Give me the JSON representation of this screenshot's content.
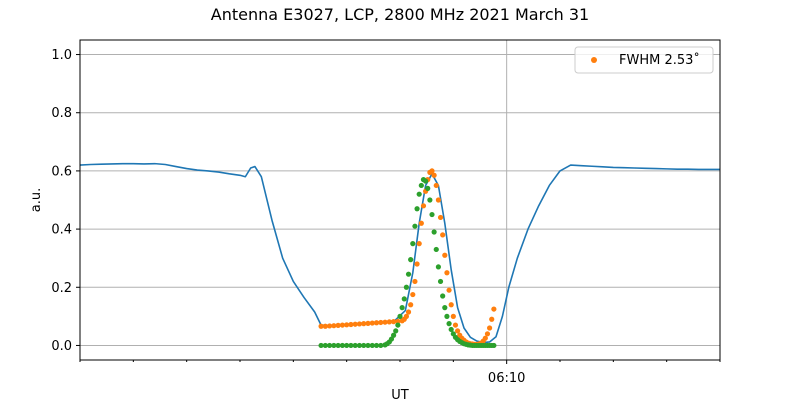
{
  "chart_data": {
    "type": "scatter",
    "title": "Antenna E3027, LCP, 2800 MHz 2021 March 31",
    "xlabel": "UT",
    "ylabel": "a.u.",
    "ylim": [
      -0.05,
      1.05
    ],
    "xlim": [
      0,
      60
    ],
    "x_units": "minutes, relative",
    "yticks": [
      0.0,
      0.2,
      0.4,
      0.6,
      0.8,
      1.0
    ],
    "ytick_labels": [
      "0.0",
      "0.2",
      "0.4",
      "0.6",
      "0.8",
      "1.0"
    ],
    "xticks_major": [
      {
        "x": 40,
        "label": "06:10"
      }
    ],
    "xticks_minor": [
      0,
      5,
      10,
      15,
      20,
      25,
      30,
      35,
      45,
      50,
      55,
      60
    ],
    "grid": true,
    "legend_position": "top-right",
    "legend": [
      {
        "label": "FWHM 2.53$^\\circ$",
        "display": "FWHM 2.53˚",
        "color": "#ff7f0e",
        "marker": "point"
      }
    ],
    "colors": {
      "measured": "#1f77b4",
      "fit": "#ff7f0e",
      "model": "#2ca02c"
    },
    "series": [
      {
        "style": "line",
        "color": "#1f77b4",
        "x": [
          0,
          1,
          2,
          3,
          4,
          5,
          6,
          7,
          8,
          9,
          10,
          11,
          12,
          13,
          14,
          15,
          15.5,
          16,
          16.4,
          17,
          18,
          19,
          20,
          21,
          22,
          22.6,
          23.5,
          24.5,
          25.5,
          26.5,
          27.5,
          28.5,
          29.5,
          30.5,
          31.2,
          31.8,
          32.4,
          33,
          33.6,
          34.2,
          34.8,
          35.4,
          36,
          36.6,
          37.2,
          37.8,
          38.4,
          39,
          39.6,
          40.2,
          41,
          42,
          43,
          44,
          45,
          46,
          47,
          48,
          49,
          50,
          51,
          52,
          53,
          54,
          55,
          56,
          57,
          58,
          59,
          60
        ],
        "y": [
          0.62,
          0.622,
          0.623,
          0.624,
          0.625,
          0.625,
          0.624,
          0.625,
          0.622,
          0.615,
          0.608,
          0.603,
          0.6,
          0.596,
          0.59,
          0.585,
          0.58,
          0.61,
          0.615,
          0.58,
          0.43,
          0.3,
          0.22,
          0.165,
          0.115,
          0.07,
          0.068,
          0.07,
          0.072,
          0.075,
          0.078,
          0.08,
          0.085,
          0.12,
          0.25,
          0.42,
          0.55,
          0.59,
          0.55,
          0.42,
          0.26,
          0.13,
          0.06,
          0.028,
          0.015,
          0.01,
          0.012,
          0.03,
          0.1,
          0.2,
          0.3,
          0.4,
          0.48,
          0.55,
          0.6,
          0.62,
          0.618,
          0.616,
          0.614,
          0.612,
          0.611,
          0.61,
          0.609,
          0.608,
          0.607,
          0.606,
          0.606,
          0.605,
          0.605,
          0.605
        ]
      },
      {
        "name": "FWHM 2.53˚",
        "style": "points",
        "color": "#ff7f0e",
        "x": [
          22.6,
          23,
          23.4,
          23.8,
          24.2,
          24.6,
          25,
          25.4,
          25.8,
          26.2,
          26.6,
          27,
          27.4,
          27.8,
          28.2,
          28.6,
          29,
          29.4,
          29.8,
          30.2,
          30.4,
          30.6,
          30.8,
          31,
          31.2,
          31.4,
          31.6,
          31.8,
          32,
          32.2,
          32.4,
          32.6,
          32.8,
          33,
          33.2,
          33.4,
          33.6,
          33.8,
          34,
          34.2,
          34.4,
          34.6,
          34.8,
          35,
          35.2,
          35.4,
          35.6,
          35.8,
          36,
          36.2,
          36.4,
          36.6,
          36.8,
          37,
          37.2,
          37.4,
          37.6,
          37.8,
          38,
          38.2,
          38.4,
          38.6,
          38.8
        ],
        "y": [
          0.066,
          0.066,
          0.067,
          0.068,
          0.069,
          0.07,
          0.071,
          0.072,
          0.073,
          0.074,
          0.075,
          0.076,
          0.077,
          0.078,
          0.079,
          0.08,
          0.081,
          0.082,
          0.083,
          0.085,
          0.09,
          0.1,
          0.115,
          0.14,
          0.175,
          0.22,
          0.28,
          0.35,
          0.42,
          0.48,
          0.53,
          0.57,
          0.595,
          0.6,
          0.585,
          0.55,
          0.5,
          0.44,
          0.38,
          0.31,
          0.25,
          0.19,
          0.14,
          0.1,
          0.07,
          0.05,
          0.035,
          0.025,
          0.018,
          0.012,
          0.008,
          0.006,
          0.005,
          0.004,
          0.004,
          0.005,
          0.008,
          0.015,
          0.025,
          0.04,
          0.06,
          0.09,
          0.125
        ]
      },
      {
        "style": "points",
        "color": "#2ca02c",
        "x": [
          22.6,
          23,
          23.4,
          23.8,
          24.2,
          24.6,
          25,
          25.4,
          25.8,
          26.2,
          26.6,
          27,
          27.4,
          27.8,
          28.2,
          28.6,
          28.8,
          29,
          29.2,
          29.4,
          29.6,
          29.8,
          30,
          30.2,
          30.4,
          30.6,
          30.8,
          31,
          31.2,
          31.4,
          31.6,
          31.8,
          32,
          32.2,
          32.4,
          32.6,
          32.8,
          33,
          33.2,
          33.4,
          33.6,
          33.8,
          34,
          34.2,
          34.4,
          34.6,
          34.8,
          35,
          35.2,
          35.4,
          35.6,
          35.8,
          36,
          36.2,
          36.4,
          36.6,
          36.8,
          37,
          37.2,
          37.4,
          37.6,
          37.8,
          38,
          38.2,
          38.4,
          38.6,
          38.8
        ],
        "y": [
          0.0,
          0.0,
          0.0,
          0.0,
          0.0,
          0.0,
          0.0,
          0.0,
          0.0,
          0.0,
          0.0,
          0.0,
          0.0,
          0.0,
          0.0,
          0.002,
          0.006,
          0.012,
          0.022,
          0.035,
          0.05,
          0.07,
          0.1,
          0.13,
          0.16,
          0.2,
          0.245,
          0.295,
          0.35,
          0.41,
          0.47,
          0.52,
          0.55,
          0.57,
          0.565,
          0.54,
          0.5,
          0.45,
          0.39,
          0.33,
          0.27,
          0.22,
          0.17,
          0.13,
          0.1,
          0.075,
          0.055,
          0.04,
          0.028,
          0.02,
          0.014,
          0.01,
          0.006,
          0.004,
          0.002,
          0.001,
          0.0,
          0.0,
          0.0,
          0.0,
          0.0,
          0.0,
          0.0,
          0.0,
          0.0,
          0.0,
          0.0
        ]
      }
    ]
  }
}
